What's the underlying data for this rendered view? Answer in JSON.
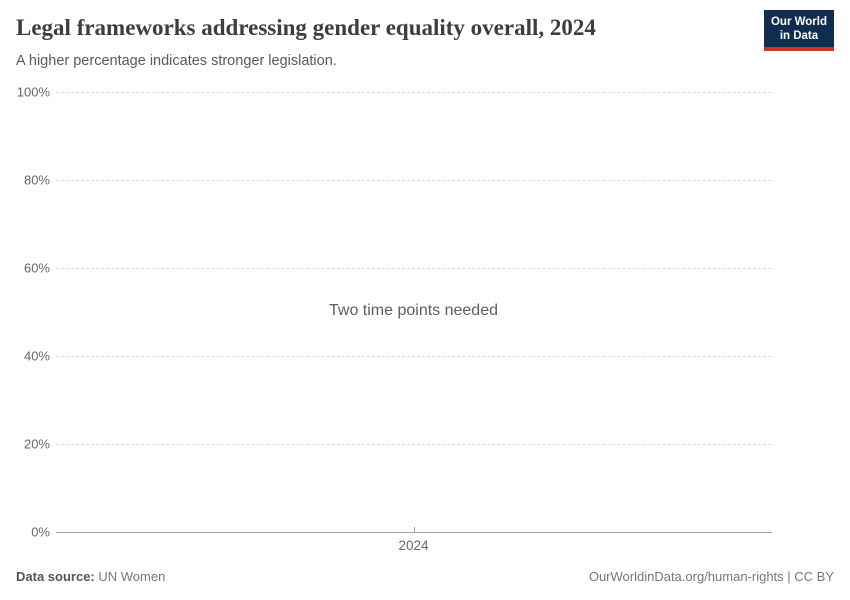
{
  "header": {
    "title": "Legal frameworks addressing gender equality overall, 2024",
    "subtitle": "A higher percentage indicates stronger legislation.",
    "logo": {
      "line1": "Our World",
      "line2": "in Data"
    }
  },
  "chart_data": {
    "type": "line",
    "title": "Legal frameworks addressing gender equality overall, 2024",
    "subtitle": "A higher percentage indicates stronger legislation.",
    "empty_message": "Two time points needed",
    "series": [],
    "x": [
      2024
    ],
    "x_tick_labels": [
      "2024"
    ],
    "xlabel": "",
    "ylabel": "",
    "ylim": [
      0,
      100
    ],
    "y_ticks": [
      0,
      20,
      40,
      60,
      80,
      100
    ],
    "y_tick_format": "{}%",
    "grid": "horizontal-dashed",
    "legend": "none"
  },
  "footer": {
    "source_label": "Data source:",
    "source_value": "UN Women",
    "credit": "OurWorldinData.org/human-rights | CC BY"
  },
  "colors": {
    "title_text": "#3d3d3d",
    "subtitle_text": "#595959",
    "tick_text": "#666666",
    "gridline": "#dcdcdc",
    "axis": "#a3a3a3",
    "empty_text": "#5e5e5e",
    "footer_text": "#777777",
    "logo_bg": "#102d50",
    "logo_accent": "#d1322a"
  }
}
